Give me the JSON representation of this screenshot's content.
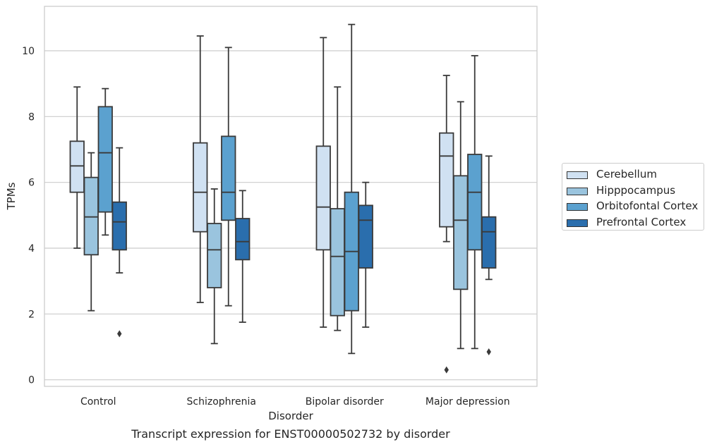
{
  "chart_data": {
    "type": "box",
    "xlabel": "Disorder",
    "ylabel": "TPMs",
    "ylim": [
      -0.2,
      11.35
    ],
    "yticks": [
      0,
      2,
      4,
      6,
      8,
      10
    ],
    "grid": "horizontal",
    "legend_position": "right",
    "categories": [
      "Control",
      "Schizophrenia",
      "Bipolar disorder",
      "Major depression"
    ],
    "series": [
      {
        "name": "Cerebellum",
        "color": "#d0e1f2",
        "boxes": [
          {
            "whisker_low": 4.0,
            "q1": 5.7,
            "median": 6.5,
            "q3": 7.25,
            "whisker_high": 8.9,
            "outliers": []
          },
          {
            "whisker_low": 2.35,
            "q1": 4.5,
            "median": 5.7,
            "q3": 7.2,
            "whisker_high": 10.45,
            "outliers": []
          },
          {
            "whisker_low": 1.6,
            "q1": 3.95,
            "median": 5.25,
            "q3": 7.1,
            "whisker_high": 10.4,
            "outliers": []
          },
          {
            "whisker_low": 4.2,
            "q1": 4.65,
            "median": 6.8,
            "q3": 7.5,
            "whisker_high": 9.25,
            "outliers": [
              0.3
            ]
          }
        ]
      },
      {
        "name": "Hipppocampus",
        "color": "#9ac4de",
        "boxes": [
          {
            "whisker_low": 2.1,
            "q1": 3.8,
            "median": 4.95,
            "q3": 6.15,
            "whisker_high": 6.9,
            "outliers": []
          },
          {
            "whisker_low": 1.1,
            "q1": 2.8,
            "median": 3.95,
            "q3": 4.75,
            "whisker_high": 5.8,
            "outliers": []
          },
          {
            "whisker_low": 1.5,
            "q1": 1.95,
            "median": 3.75,
            "q3": 5.2,
            "whisker_high": 8.9,
            "outliers": []
          },
          {
            "whisker_low": 0.95,
            "q1": 2.75,
            "median": 4.85,
            "q3": 6.2,
            "whisker_high": 8.45,
            "outliers": []
          }
        ]
      },
      {
        "name": "Orbitofontal Cortex",
        "color": "#5ba1cf",
        "boxes": [
          {
            "whisker_low": 4.4,
            "q1": 5.1,
            "median": 6.9,
            "q3": 8.3,
            "whisker_high": 8.85,
            "outliers": []
          },
          {
            "whisker_low": 2.25,
            "q1": 4.85,
            "median": 5.7,
            "q3": 7.4,
            "whisker_high": 10.1,
            "outliers": []
          },
          {
            "whisker_low": 0.8,
            "q1": 2.1,
            "median": 3.9,
            "q3": 5.7,
            "whisker_high": 10.8,
            "outliers": []
          },
          {
            "whisker_low": 0.95,
            "q1": 3.95,
            "median": 5.7,
            "q3": 6.85,
            "whisker_high": 9.85,
            "outliers": []
          }
        ]
      },
      {
        "name": "Prefrontal Cortex",
        "color": "#2a6ead",
        "boxes": [
          {
            "whisker_low": 3.25,
            "q1": 3.95,
            "median": 4.8,
            "q3": 5.4,
            "whisker_high": 7.05,
            "outliers": [
              1.4
            ]
          },
          {
            "whisker_low": 1.75,
            "q1": 3.65,
            "median": 4.2,
            "q3": 4.9,
            "whisker_high": 5.75,
            "outliers": []
          },
          {
            "whisker_low": 1.6,
            "q1": 3.4,
            "median": 4.85,
            "q3": 5.3,
            "whisker_high": 6.0,
            "outliers": []
          },
          {
            "whisker_low": 3.05,
            "q1": 3.4,
            "median": 4.5,
            "q3": 4.95,
            "whisker_high": 6.8,
            "outliers": [
              0.85
            ]
          }
        ]
      }
    ]
  },
  "caption": "Transcript expression for ENST00000502732 by disorder"
}
